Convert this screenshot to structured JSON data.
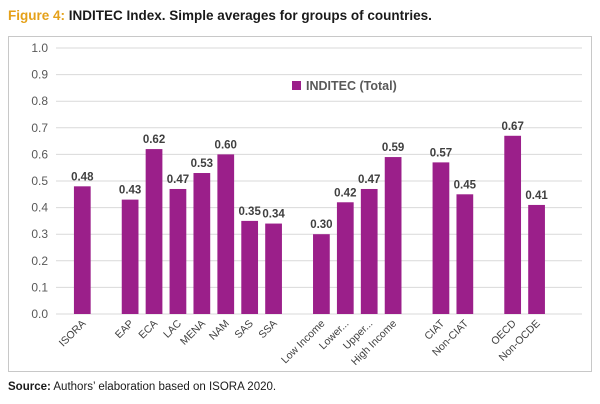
{
  "caption": {
    "figure_label": "Figure 4:",
    "title": "INDITEC Index. Simple averages for groups of countries."
  },
  "source": {
    "label": "Source:",
    "text": "Authors’ elaboration based on ISORA 2020."
  },
  "colors": {
    "bar": "#9b1f8a",
    "figure_label": "#e5a11a",
    "gridline": "#d9d9d9"
  },
  "chart_data": {
    "type": "bar",
    "categories": [
      "ISORA",
      "EAP",
      "ECA",
      "LAC",
      "MENA",
      "NAM",
      "SAS",
      "SSA",
      "Low Income",
      "Lower...",
      "Upper...",
      "High Income",
      "CIAT",
      "Non-CIAT",
      "OECD",
      "Non-OCDE"
    ],
    "groups": [
      [
        0
      ],
      [
        1,
        2,
        3,
        4,
        5,
        6,
        7
      ],
      [
        8,
        9,
        10,
        11
      ],
      [
        12,
        13
      ],
      [
        14,
        15
      ]
    ],
    "series": [
      {
        "name": "INDITEC (Total)",
        "values": [
          0.48,
          0.43,
          0.62,
          0.47,
          0.53,
          0.6,
          0.35,
          0.34,
          0.3,
          0.42,
          0.47,
          0.59,
          0.57,
          0.45,
          0.67,
          0.41
        ],
        "labels": [
          "0.48",
          "0.43",
          "0.62",
          "0.47",
          "0.53",
          "0.60",
          "0.35",
          "0.34",
          "0.30",
          "0.42",
          "0.47",
          "0.59",
          "0.57",
          "0.45",
          "0.67",
          "0.41"
        ]
      }
    ],
    "yticks": [
      "0.0",
      "0.1",
      "0.2",
      "0.3",
      "0.4",
      "0.5",
      "0.6",
      "0.7",
      "0.8",
      "0.9",
      "1.0"
    ],
    "ylim": [
      0,
      1.0
    ],
    "grid": true,
    "legend": "top-center"
  }
}
